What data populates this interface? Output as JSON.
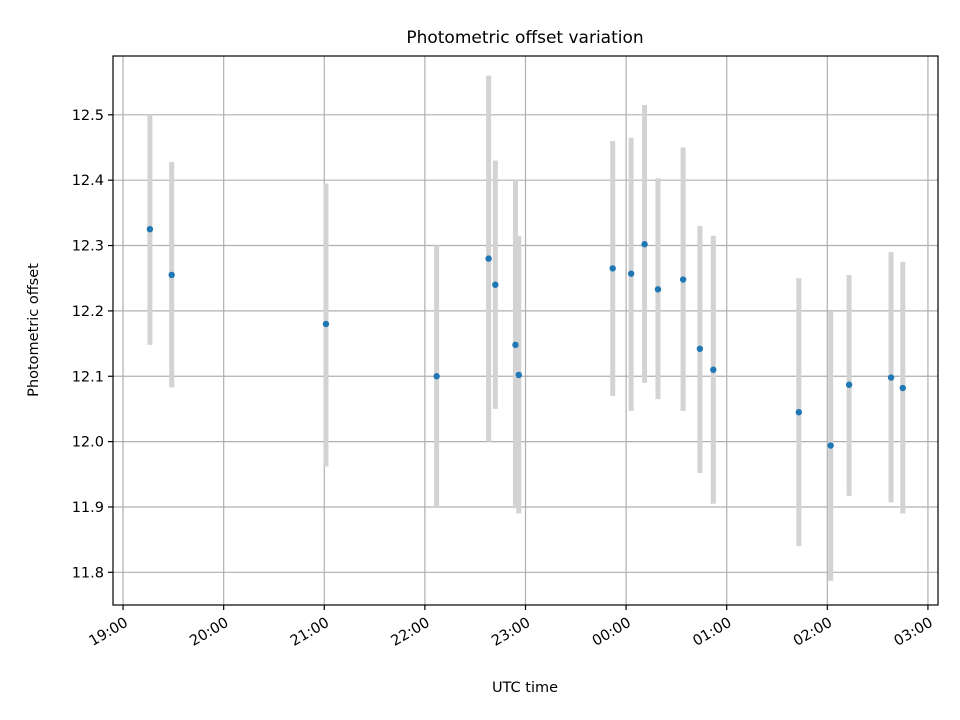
{
  "chart_data": {
    "type": "scatter",
    "title": "Photometric offset variation",
    "xlabel": "UTC time",
    "ylabel": "Photometric offset",
    "xlim": [
      "2024-01-01T18:54",
      "2024-01-02T03:06"
    ],
    "ylim": [
      11.75,
      12.59
    ],
    "x_ticks": [
      "19:00",
      "20:00",
      "21:00",
      "22:00",
      "23:00",
      "00:00",
      "01:00",
      "02:00",
      "03:00"
    ],
    "y_ticks": [
      11.8,
      11.9,
      12.0,
      12.1,
      12.2,
      12.3,
      12.4,
      12.5
    ],
    "grid": true,
    "series": [
      {
        "points": [
          {
            "time": "2024-01-01T19:16",
            "value": 12.325,
            "err_low": 12.148,
            "err_high": 12.5
          },
          {
            "time": "2024-01-01T19:29",
            "value": 12.255,
            "err_low": 12.083,
            "err_high": 12.428
          },
          {
            "time": "2024-01-01T21:01",
            "value": 12.18,
            "err_low": 11.962,
            "err_high": 12.395
          },
          {
            "time": "2024-01-01T22:07",
            "value": 12.1,
            "err_low": 11.9,
            "err_high": 12.3
          },
          {
            "time": "2024-01-01T22:38",
            "value": 12.28,
            "err_low": 12.0,
            "err_high": 12.56
          },
          {
            "time": "2024-01-01T22:42",
            "value": 12.24,
            "err_low": 12.05,
            "err_high": 12.43
          },
          {
            "time": "2024-01-01T22:54",
            "value": 12.148,
            "err_low": 11.898,
            "err_high": 12.4
          },
          {
            "time": "2024-01-01T22:56",
            "value": 12.102,
            "err_low": 11.89,
            "err_high": 12.315
          },
          {
            "time": "2024-01-01T23:52",
            "value": 12.265,
            "err_low": 12.07,
            "err_high": 12.46
          },
          {
            "time": "2024-01-02T00:03",
            "value": 12.257,
            "err_low": 12.047,
            "err_high": 12.465
          },
          {
            "time": "2024-01-02T00:11",
            "value": 12.302,
            "err_low": 12.09,
            "err_high": 12.515
          },
          {
            "time": "2024-01-02T00:19",
            "value": 12.233,
            "err_low": 12.065,
            "err_high": 12.403
          },
          {
            "time": "2024-01-02T00:34",
            "value": 12.248,
            "err_low": 12.047,
            "err_high": 12.45
          },
          {
            "time": "2024-01-02T00:44",
            "value": 12.142,
            "err_low": 11.952,
            "err_high": 12.33
          },
          {
            "time": "2024-01-02T00:52",
            "value": 12.11,
            "err_low": 11.905,
            "err_high": 12.315
          },
          {
            "time": "2024-01-02T01:43",
            "value": 12.045,
            "err_low": 11.84,
            "err_high": 12.25
          },
          {
            "time": "2024-01-02T02:02",
            "value": 11.994,
            "err_low": 11.787,
            "err_high": 12.2
          },
          {
            "time": "2024-01-02T02:13",
            "value": 12.087,
            "err_low": 11.917,
            "err_high": 12.255
          },
          {
            "time": "2024-01-02T02:38",
            "value": 12.098,
            "err_low": 11.907,
            "err_high": 12.29
          },
          {
            "time": "2024-01-02T02:45",
            "value": 12.082,
            "err_low": 11.89,
            "err_high": 12.275
          }
        ]
      }
    ],
    "colors": {
      "point": "#1f77b4",
      "errorbar": "#d3d3d3",
      "grid": "#b0b0b0",
      "axes": "#000000"
    }
  }
}
